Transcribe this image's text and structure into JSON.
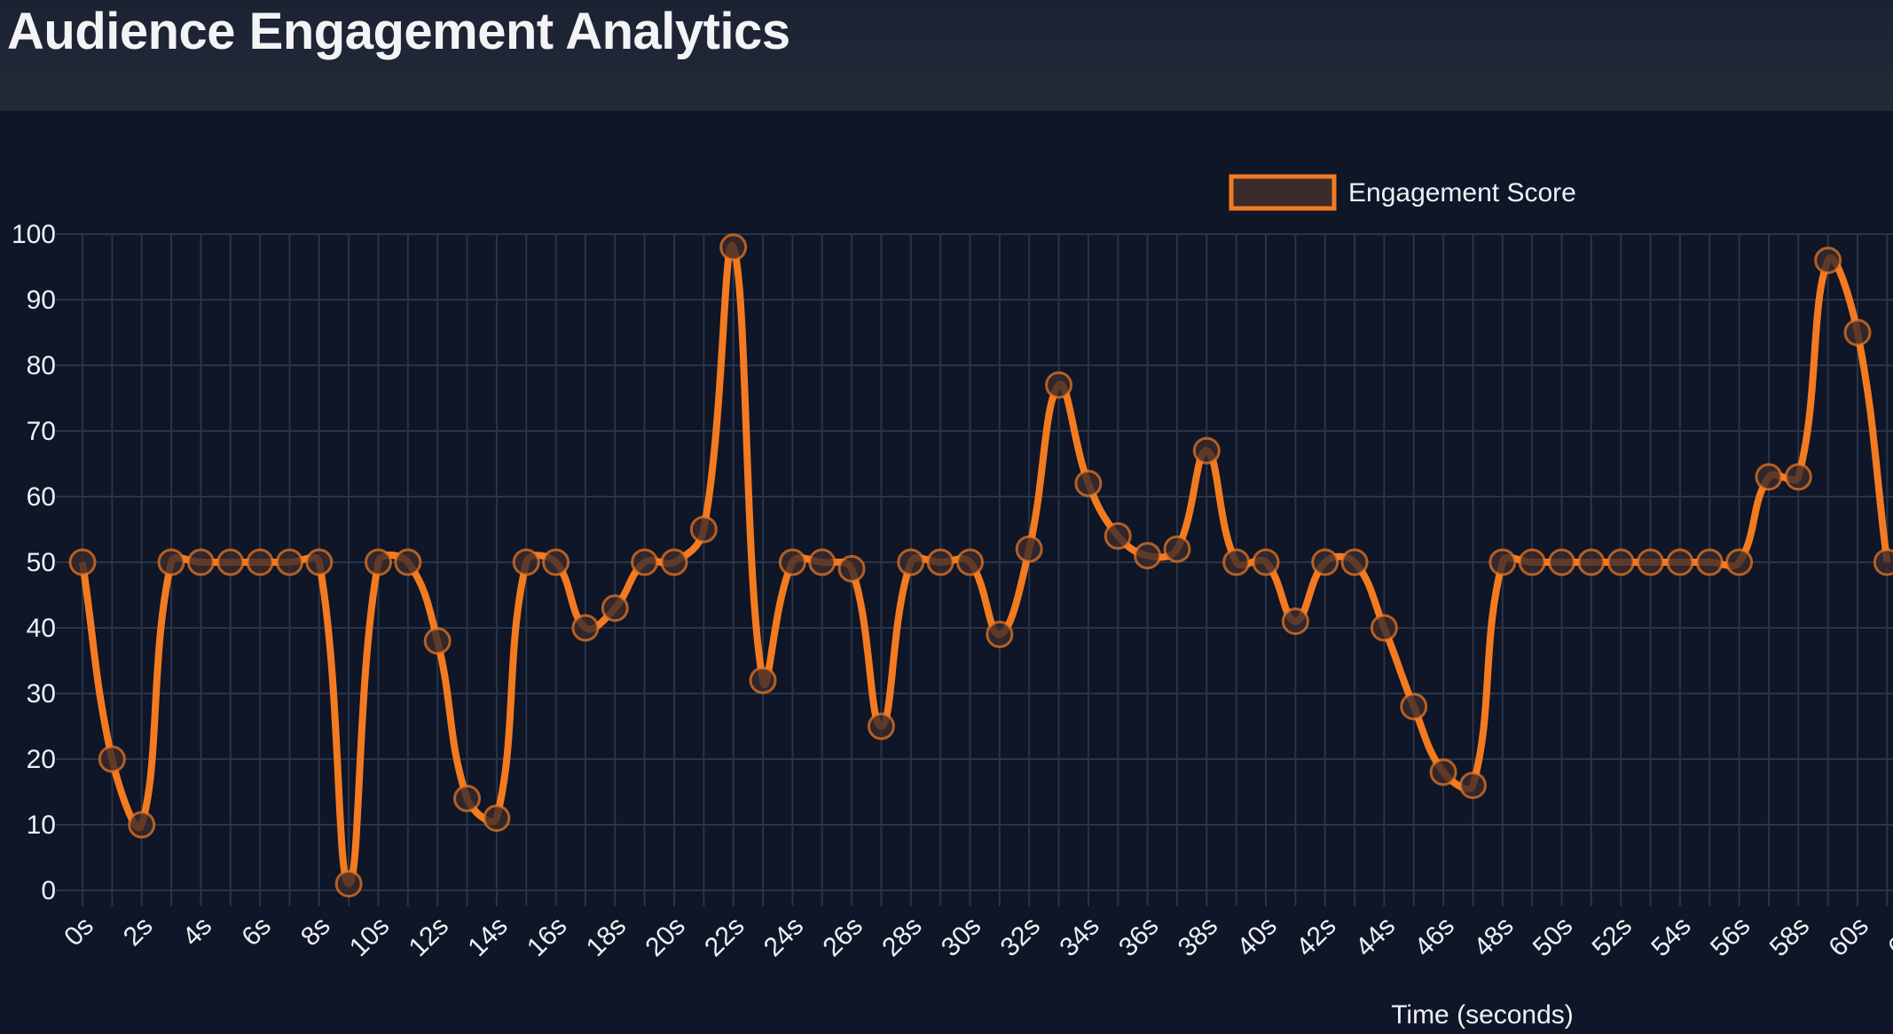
{
  "header": {
    "title": "Audience Engagement Analytics"
  },
  "chart_data": {
    "type": "line",
    "title": "",
    "xlabel": "Time (seconds)",
    "ylabel": "",
    "ylim": [
      0,
      100
    ],
    "yticks": [
      0,
      10,
      20,
      30,
      40,
      50,
      60,
      70,
      80,
      90,
      100
    ],
    "xlim": [
      0,
      62
    ],
    "xtick_step": 2,
    "tick_suffix": "s",
    "grid": true,
    "legend_position": "top",
    "colors": {
      "line": "#f47a20",
      "point_fill": "#3b2b2c",
      "background": "#0e1628",
      "grid": "#2a3446"
    },
    "series": [
      {
        "name": "Engagement Score",
        "x": [
          0,
          1,
          2,
          3,
          4,
          5,
          6,
          7,
          8,
          9,
          10,
          11,
          12,
          13,
          14,
          15,
          16,
          17,
          18,
          19,
          20,
          21,
          22,
          23,
          24,
          25,
          26,
          27,
          28,
          29,
          30,
          31,
          32,
          33,
          34,
          35,
          36,
          37,
          38,
          39,
          40,
          41,
          42,
          43,
          44,
          45,
          46,
          47,
          48,
          49,
          50,
          51,
          52,
          53,
          54,
          55,
          56,
          57,
          58,
          59,
          60,
          61
        ],
        "values": [
          50,
          20,
          10,
          50,
          50,
          50,
          50,
          50,
          50,
          1,
          50,
          50,
          38,
          14,
          11,
          50,
          50,
          40,
          43,
          50,
          50,
          55,
          98,
          32,
          50,
          50,
          49,
          25,
          50,
          50,
          50,
          39,
          52,
          77,
          62,
          54,
          51,
          52,
          67,
          50,
          50,
          41,
          50,
          50,
          40,
          28,
          18,
          16,
          50,
          50,
          50,
          50,
          50,
          50,
          50,
          50,
          50,
          63,
          63,
          96,
          85,
          50
        ]
      }
    ]
  }
}
